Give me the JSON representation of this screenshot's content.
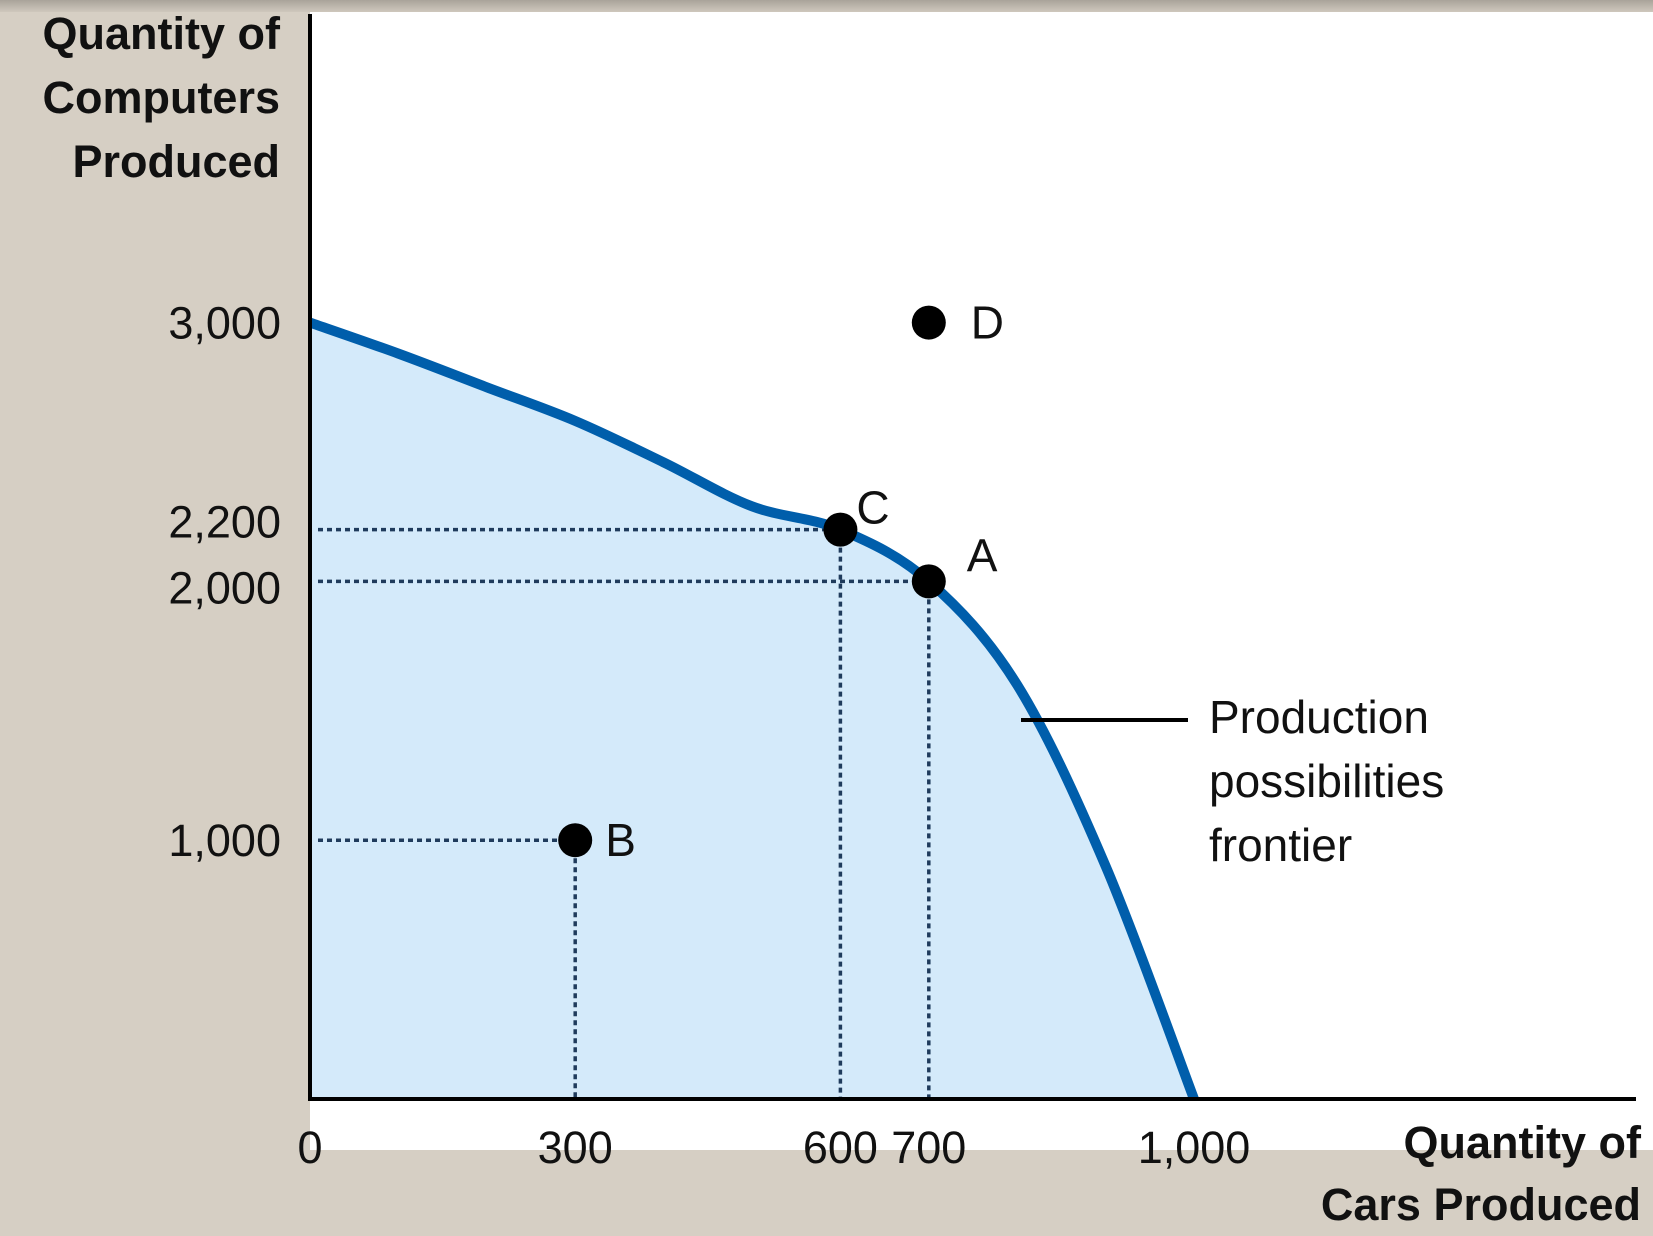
{
  "chart_data": {
    "type": "line",
    "title": "",
    "xlabel_lines": [
      "Quantity of",
      "Cars Produced"
    ],
    "ylabel_lines": [
      "Quantity of",
      "Computers",
      "Produced"
    ],
    "xlim": [
      0,
      1500
    ],
    "ylim": [
      0,
      4200
    ],
    "x_ticks": [
      {
        "value": 0,
        "label": "0"
      },
      {
        "value": 300,
        "label": "300"
      },
      {
        "value": 600,
        "label": "600"
      },
      {
        "value": 700,
        "label": "700"
      },
      {
        "value": 1000,
        "label": "1,000"
      }
    ],
    "y_ticks": [
      {
        "value": 1000,
        "label": "1,000"
      },
      {
        "value": 2000,
        "label": "2,000"
      },
      {
        "value": 2200,
        "label": "2,200"
      },
      {
        "value": 3000,
        "label": "3,000"
      }
    ],
    "frontier": {
      "name": "Production possibilities frontier",
      "label_lines": [
        "Production",
        "possibilities",
        "frontier"
      ],
      "color": "#005eab",
      "fill_color": "#d4eafa",
      "x": [
        0,
        100,
        200,
        300,
        400,
        500,
        600,
        700,
        800,
        900,
        1000
      ],
      "y": [
        3000,
        2880,
        2750,
        2620,
        2460,
        2290,
        2200,
        2000,
        1600,
        900,
        0
      ]
    },
    "points": [
      {
        "label": "A",
        "x": 700,
        "y": 2000,
        "guides": true
      },
      {
        "label": "B",
        "x": 300,
        "y": 1000,
        "guides": true
      },
      {
        "label": "C",
        "x": 600,
        "y": 2200,
        "guides": true
      },
      {
        "label": "D",
        "x": 700,
        "y": 3000,
        "guides": false
      }
    ],
    "grid": false,
    "legend": "right"
  }
}
